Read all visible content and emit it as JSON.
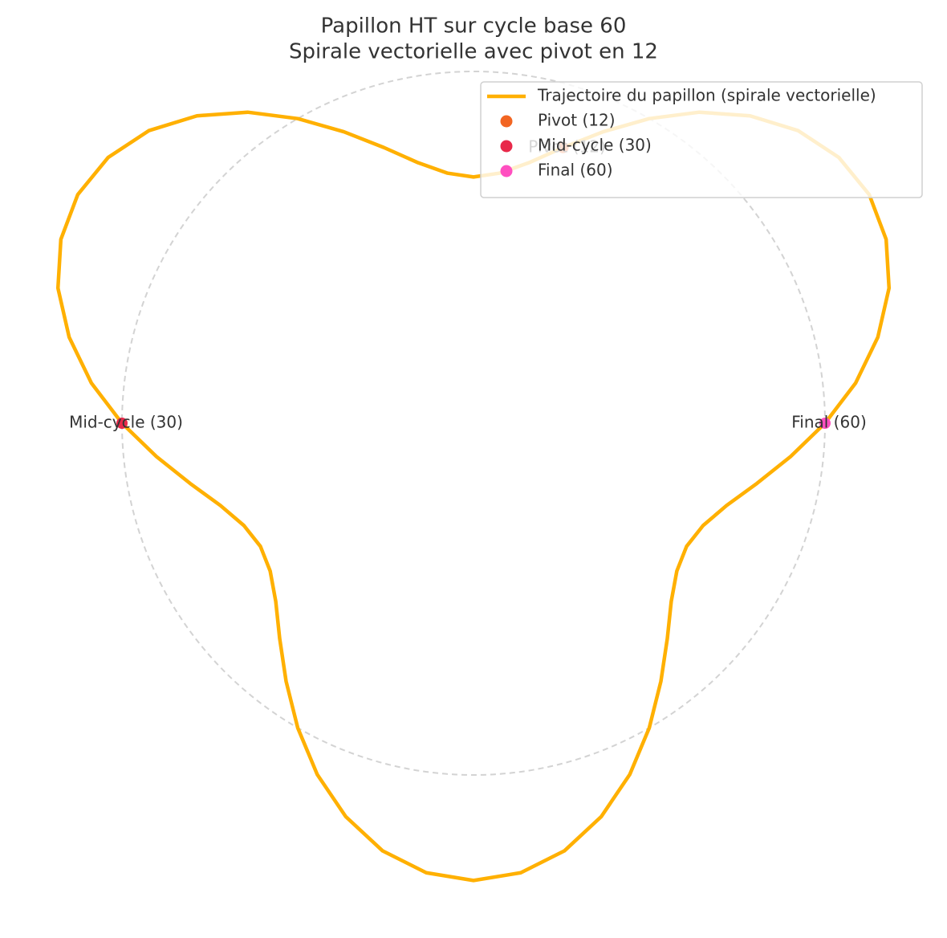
{
  "chart_data": {
    "type": "polar",
    "title": "Papillon HT sur cycle base 60",
    "subtitle": "Spirale vectorielle avec pivot en 12",
    "series": [
      {
        "name": "Trajectoire du papillon (spirale vectorielle)",
        "color": "#ffb000",
        "theta": [
          0,
          6,
          12,
          18,
          24,
          30,
          36,
          42,
          48,
          54,
          60,
          66,
          72,
          78,
          84,
          90,
          96,
          102,
          108,
          114,
          120,
          126,
          132,
          138,
          144,
          150,
          156,
          162,
          168,
          174,
          180,
          186,
          192,
          198,
          204,
          210,
          216,
          222,
          228,
          234,
          240,
          246,
          252,
          258,
          264,
          270,
          276,
          282,
          288,
          294,
          300,
          306,
          312,
          318,
          324,
          330,
          336,
          342,
          348,
          354,
          360
        ],
        "r": [
          1,
          1.093,
          1.176,
          1.243,
          1.285,
          1.3,
          1.285,
          1.243,
          1.176,
          1.093,
          1,
          0.907,
          0.824,
          0.757,
          0.715,
          0.7,
          0.715,
          0.757,
          0.824,
          0.907,
          1,
          1.093,
          1.176,
          1.243,
          1.285,
          1.3,
          1.285,
          1.243,
          1.176,
          1.093,
          1,
          0.907,
          0.824,
          0.757,
          0.715,
          0.7,
          0.715,
          0.757,
          0.824,
          0.907,
          1,
          1.093,
          1.176,
          1.243,
          1.285,
          1.3,
          1.285,
          1.243,
          1.176,
          1.093,
          1,
          0.907,
          0.824,
          0.757,
          0.715,
          0.7,
          0.715,
          0.757,
          0.824,
          0.907,
          1
        ]
      }
    ],
    "points": [
      {
        "name": "Pivot (12)",
        "color": "#f26522",
        "theta": 72,
        "r": 0.824
      },
      {
        "name": "Mid-cycle (30)",
        "color": "#e8294a",
        "theta": 180,
        "r": 1
      },
      {
        "name": "Final (60)",
        "color": "#ff4fc0",
        "theta": 360,
        "r": 1
      }
    ],
    "reference_circle_r": 1,
    "legend": "upper right"
  }
}
